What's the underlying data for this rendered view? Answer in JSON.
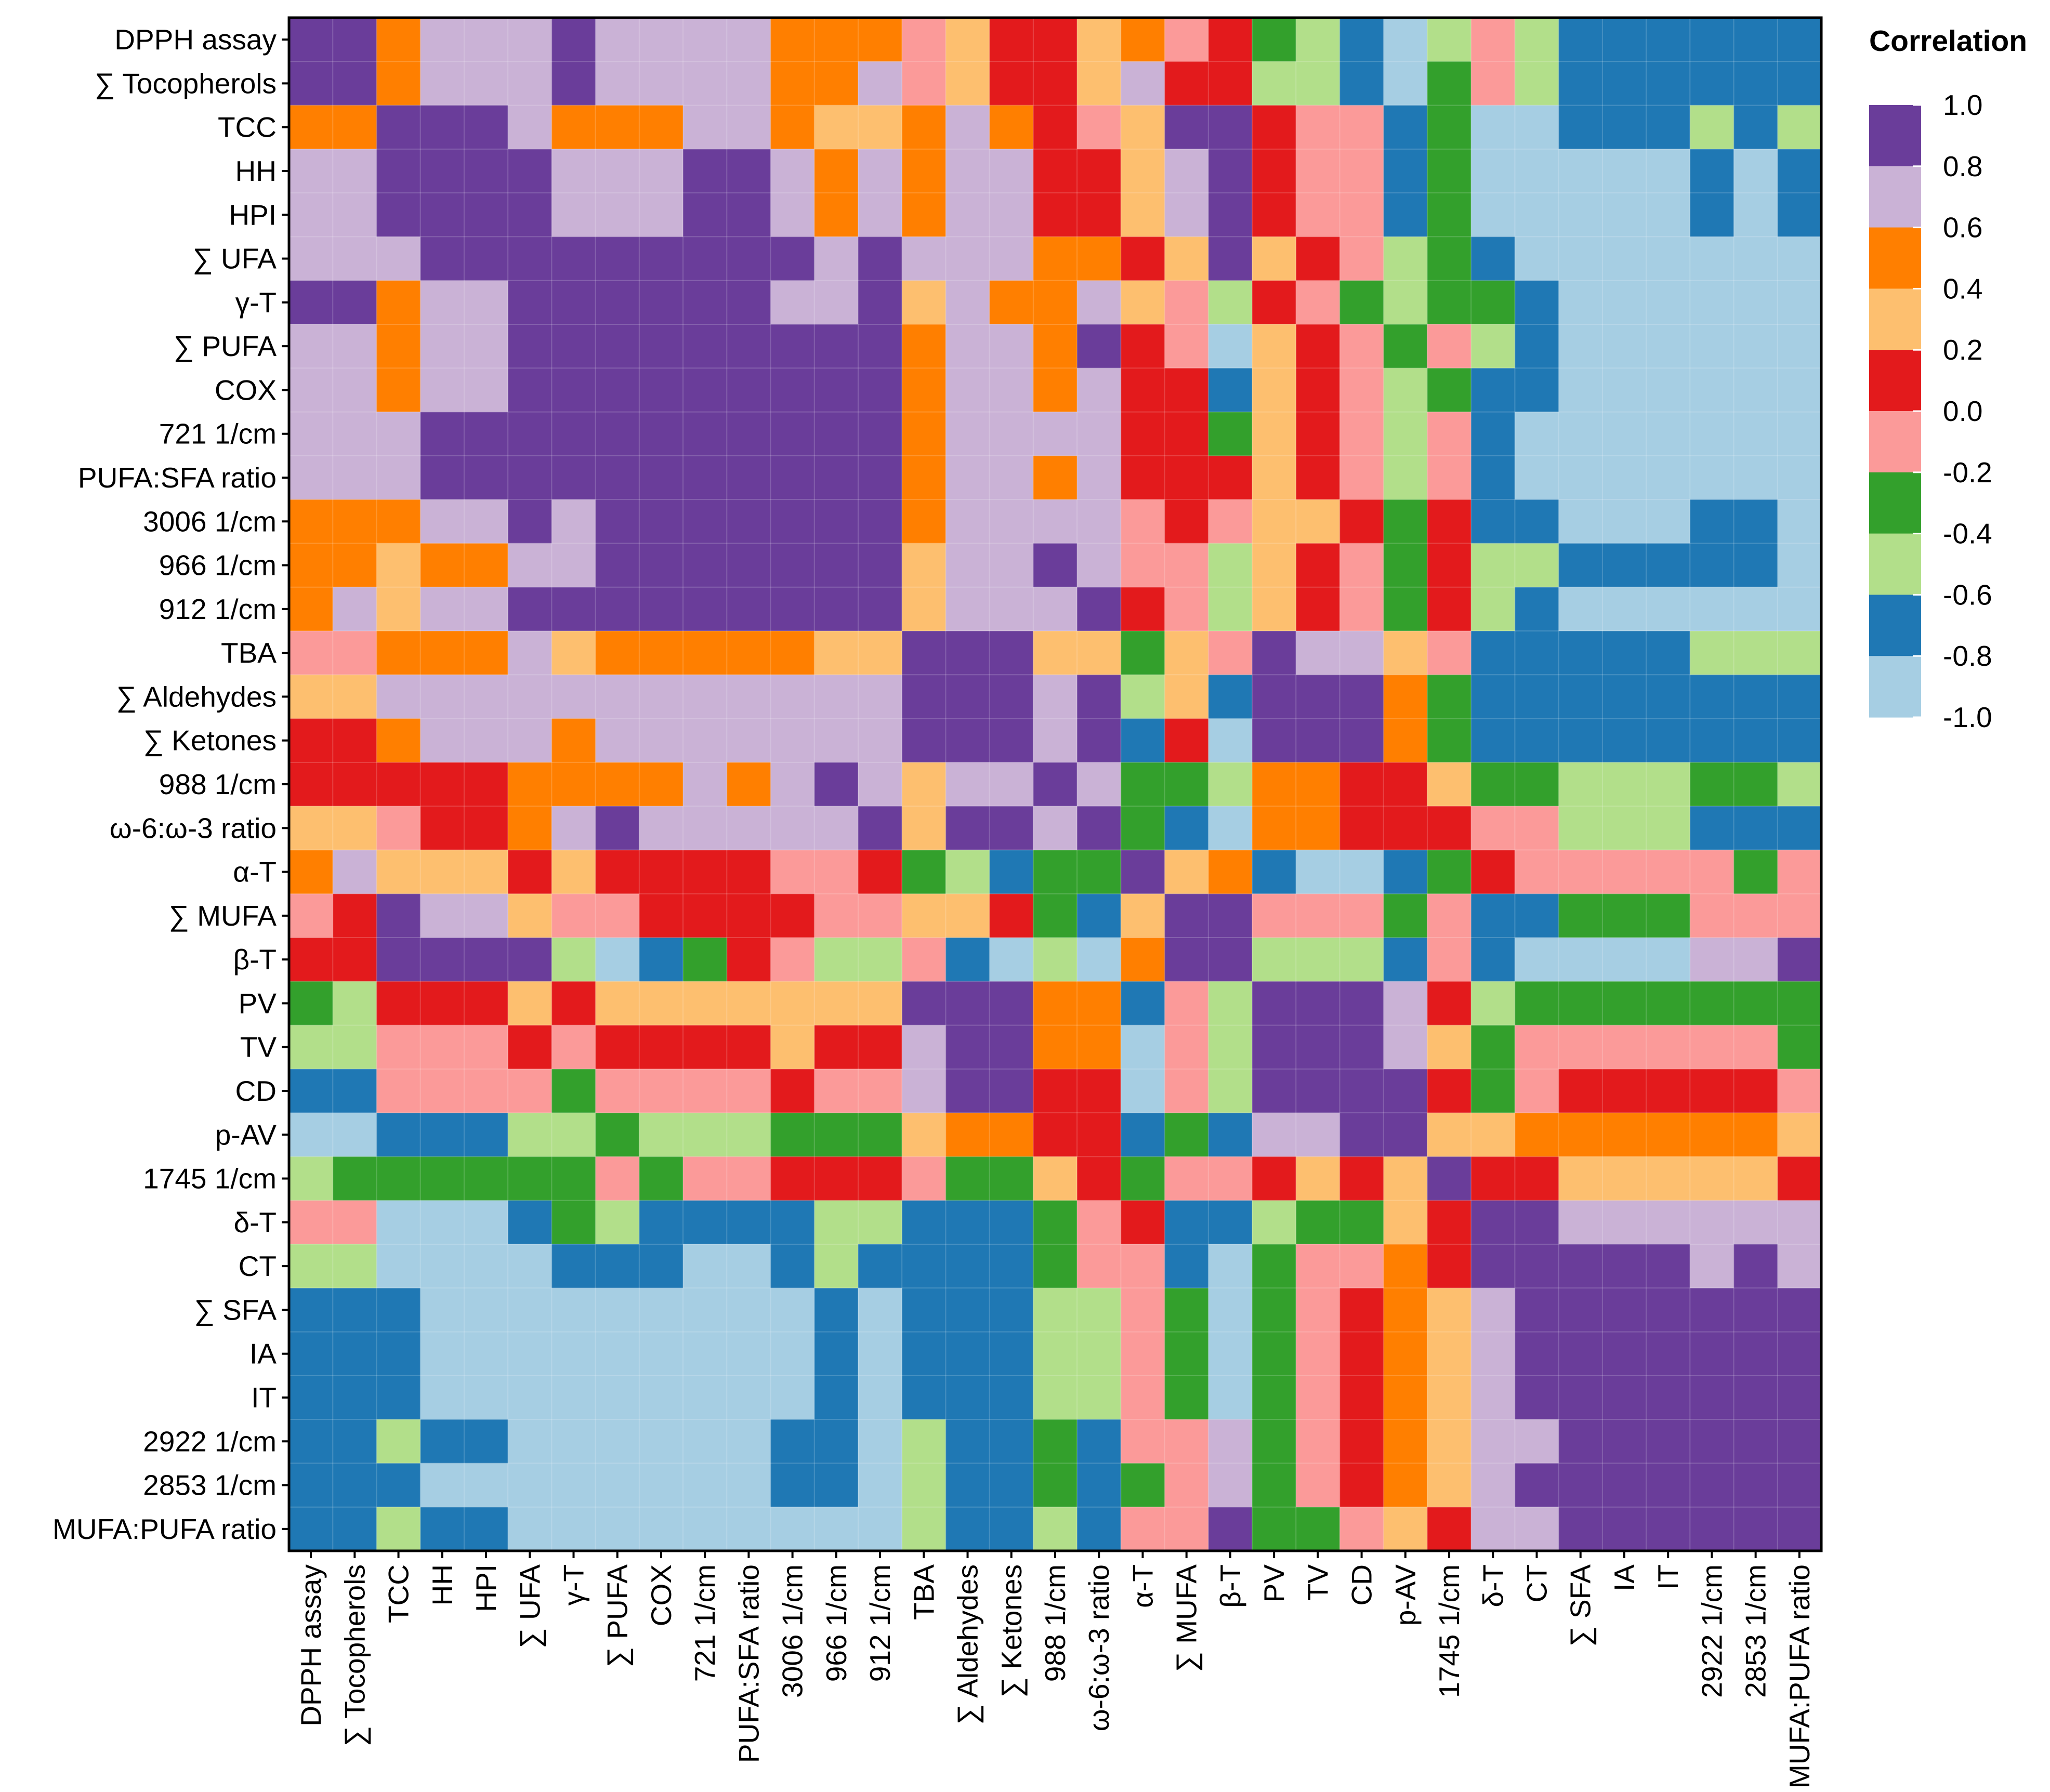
{
  "chart_data": {
    "type": "heatmap",
    "title": "",
    "legend": {
      "title": "Correlation",
      "placement": "top-right",
      "ticks": [
        "1.0",
        "0.8",
        "0.6",
        "0.4",
        "0.2",
        "0.0",
        "-0.2",
        "-0.4",
        "-0.6",
        "-0.8",
        "-1.0"
      ],
      "bins": [
        {
          "range": [
            0.8,
            1.0
          ],
          "color": "#6a3d9a"
        },
        {
          "range": [
            0.6,
            0.8
          ],
          "color": "#cab2d6"
        },
        {
          "range": [
            0.4,
            0.6
          ],
          "color": "#ff7f00"
        },
        {
          "range": [
            0.2,
            0.4
          ],
          "color": "#fdbf6f"
        },
        {
          "range": [
            0.0,
            0.2
          ],
          "color": "#e31a1c"
        },
        {
          "range": [
            -0.2,
            0.0
          ],
          "color": "#fb9a99"
        },
        {
          "range": [
            -0.4,
            -0.2
          ],
          "color": "#33a02c"
        },
        {
          "range": [
            -0.6,
            -0.4
          ],
          "color": "#b2df8a"
        },
        {
          "range": [
            -0.8,
            -0.6
          ],
          "color": "#1f78b4"
        },
        {
          "range": [
            -1.0,
            -0.8
          ],
          "color": "#a6cee3"
        }
      ]
    },
    "variables": [
      "DPPH assay",
      "∑ Tocopherols",
      "TCC",
      "HH",
      "HPI",
      "∑ UFA",
      "γ-T",
      "∑ PUFA",
      "COX",
      "721 1/cm",
      "PUFA:SFA ratio",
      "3006 1/cm",
      "966 1/cm",
      "912 1/cm",
      "TBA",
      "∑ Aldehydes",
      "∑ Ketones",
      "988 1/cm",
      "ω-6:ω-3 ratio",
      "α-T",
      "∑ MUFA",
      "β-T",
      "PV",
      "TV",
      "CD",
      "p-AV",
      "1745 1/cm",
      "δ-T",
      "CT",
      "∑ SFA",
      "IA",
      "IT",
      "2922 1/cm",
      "2853 1/cm",
      "MUFA:PUFA ratio"
    ],
    "matrix": [
      [
        0.9,
        0.9,
        0.5,
        0.7,
        0.7,
        0.7,
        0.9,
        0.7,
        0.7,
        0.7,
        0.7,
        0.5,
        0.5,
        0.5,
        -0.1,
        0.3,
        0.1,
        0.1,
        0.3,
        0.5,
        -0.1,
        0.1,
        -0.3,
        -0.5,
        -0.7,
        -0.9,
        -0.5,
        -0.1,
        -0.5,
        -0.7,
        -0.7,
        -0.7,
        -0.7,
        -0.7,
        -0.7
      ],
      [
        0.9,
        0.9,
        0.5,
        0.7,
        0.7,
        0.7,
        0.9,
        0.7,
        0.7,
        0.7,
        0.7,
        0.5,
        0.5,
        0.7,
        -0.1,
        0.3,
        0.1,
        0.1,
        0.3,
        0.7,
        0.1,
        0.1,
        -0.5,
        -0.5,
        -0.7,
        -0.9,
        -0.3,
        -0.1,
        -0.5,
        -0.7,
        -0.7,
        -0.7,
        -0.7,
        -0.7,
        -0.7
      ],
      [
        0.5,
        0.5,
        0.9,
        0.9,
        0.9,
        0.7,
        0.5,
        0.5,
        0.5,
        0.7,
        0.7,
        0.5,
        0.3,
        0.3,
        0.5,
        0.7,
        0.5,
        0.1,
        -0.1,
        0.3,
        0.9,
        0.9,
        0.1,
        -0.1,
        -0.1,
        -0.7,
        -0.3,
        -0.9,
        -0.9,
        -0.7,
        -0.7,
        -0.7,
        -0.5,
        -0.7,
        -0.5
      ],
      [
        0.7,
        0.7,
        0.9,
        0.9,
        0.9,
        0.9,
        0.7,
        0.7,
        0.7,
        0.9,
        0.9,
        0.7,
        0.5,
        0.7,
        0.5,
        0.7,
        0.7,
        0.1,
        0.1,
        0.3,
        0.7,
        0.9,
        0.1,
        -0.1,
        -0.1,
        -0.7,
        -0.3,
        -0.9,
        -0.9,
        -0.9,
        -0.9,
        -0.9,
        -0.7,
        -0.9,
        -0.7
      ],
      [
        0.7,
        0.7,
        0.9,
        0.9,
        0.9,
        0.9,
        0.7,
        0.7,
        0.7,
        0.9,
        0.9,
        0.7,
        0.5,
        0.7,
        0.5,
        0.7,
        0.7,
        0.1,
        0.1,
        0.3,
        0.7,
        0.9,
        0.1,
        -0.1,
        -0.1,
        -0.7,
        -0.3,
        -0.9,
        -0.9,
        -0.9,
        -0.9,
        -0.9,
        -0.7,
        -0.9,
        -0.7
      ],
      [
        0.7,
        0.7,
        0.7,
        0.9,
        0.9,
        0.9,
        0.9,
        0.9,
        0.9,
        0.9,
        0.9,
        0.9,
        0.7,
        0.9,
        0.7,
        0.7,
        0.7,
        0.5,
        0.5,
        0.1,
        0.3,
        0.9,
        0.3,
        0.1,
        -0.1,
        -0.5,
        -0.3,
        -0.7,
        -0.9,
        -0.9,
        -0.9,
        -0.9,
        -0.9,
        -0.9,
        -0.9
      ],
      [
        0.9,
        0.9,
        0.5,
        0.7,
        0.7,
        0.9,
        0.9,
        0.9,
        0.9,
        0.9,
        0.9,
        0.7,
        0.7,
        0.9,
        0.3,
        0.7,
        0.5,
        0.5,
        0.7,
        0.3,
        -0.1,
        -0.5,
        0.1,
        -0.1,
        -0.3,
        -0.5,
        -0.3,
        -0.3,
        -0.7,
        -0.9,
        -0.9,
        -0.9,
        -0.9,
        -0.9,
        -0.9
      ],
      [
        0.7,
        0.7,
        0.5,
        0.7,
        0.7,
        0.9,
        0.9,
        0.9,
        0.9,
        0.9,
        0.9,
        0.9,
        0.9,
        0.9,
        0.5,
        0.7,
        0.7,
        0.5,
        0.9,
        0.1,
        -0.1,
        -0.9,
        0.3,
        0.1,
        -0.1,
        -0.3,
        -0.1,
        -0.5,
        -0.7,
        -0.9,
        -0.9,
        -0.9,
        -0.9,
        -0.9,
        -0.9
      ],
      [
        0.7,
        0.7,
        0.5,
        0.7,
        0.7,
        0.9,
        0.9,
        0.9,
        0.9,
        0.9,
        0.9,
        0.9,
        0.9,
        0.9,
        0.5,
        0.7,
        0.7,
        0.5,
        0.7,
        0.1,
        0.1,
        -0.7,
        0.3,
        0.1,
        -0.1,
        -0.5,
        -0.3,
        -0.7,
        -0.7,
        -0.9,
        -0.9,
        -0.9,
        -0.9,
        -0.9,
        -0.9
      ],
      [
        0.7,
        0.7,
        0.7,
        0.9,
        0.9,
        0.9,
        0.9,
        0.9,
        0.9,
        0.9,
        0.9,
        0.9,
        0.9,
        0.9,
        0.5,
        0.7,
        0.7,
        0.7,
        0.7,
        0.1,
        0.1,
        -0.3,
        0.3,
        0.1,
        -0.1,
        -0.5,
        -0.1,
        -0.7,
        -0.9,
        -0.9,
        -0.9,
        -0.9,
        -0.9,
        -0.9,
        -0.9
      ],
      [
        0.7,
        0.7,
        0.7,
        0.9,
        0.9,
        0.9,
        0.9,
        0.9,
        0.9,
        0.9,
        0.9,
        0.9,
        0.9,
        0.9,
        0.5,
        0.7,
        0.7,
        0.5,
        0.7,
        0.1,
        0.1,
        0.1,
        0.3,
        0.1,
        -0.1,
        -0.5,
        -0.1,
        -0.7,
        -0.9,
        -0.9,
        -0.9,
        -0.9,
        -0.9,
        -0.9,
        -0.9
      ],
      [
        0.5,
        0.5,
        0.5,
        0.7,
        0.7,
        0.9,
        0.7,
        0.9,
        0.9,
        0.9,
        0.9,
        0.9,
        0.9,
        0.9,
        0.5,
        0.7,
        0.7,
        0.7,
        0.7,
        -0.1,
        0.1,
        -0.1,
        0.3,
        0.3,
        0.1,
        -0.3,
        0.1,
        -0.7,
        -0.7,
        -0.9,
        -0.9,
        -0.9,
        -0.7,
        -0.7,
        -0.9
      ],
      [
        0.5,
        0.5,
        0.3,
        0.5,
        0.5,
        0.7,
        0.7,
        0.9,
        0.9,
        0.9,
        0.9,
        0.9,
        0.9,
        0.9,
        0.3,
        0.7,
        0.7,
        0.9,
        0.7,
        -0.1,
        -0.1,
        -0.5,
        0.3,
        0.1,
        -0.1,
        -0.3,
        0.1,
        -0.5,
        -0.5,
        -0.7,
        -0.7,
        -0.7,
        -0.7,
        -0.7,
        -0.9
      ],
      [
        0.5,
        0.7,
        0.3,
        0.7,
        0.7,
        0.9,
        0.9,
        0.9,
        0.9,
        0.9,
        0.9,
        0.9,
        0.9,
        0.9,
        0.3,
        0.7,
        0.7,
        0.7,
        0.9,
        0.1,
        -0.1,
        -0.5,
        0.3,
        0.1,
        -0.1,
        -0.3,
        0.1,
        -0.5,
        -0.7,
        -0.9,
        -0.9,
        -0.9,
        -0.9,
        -0.9,
        -0.9
      ],
      [
        -0.1,
        -0.1,
        0.5,
        0.5,
        0.5,
        0.7,
        0.3,
        0.5,
        0.5,
        0.5,
        0.5,
        0.5,
        0.3,
        0.3,
        0.9,
        0.9,
        0.9,
        0.3,
        0.3,
        -0.3,
        0.3,
        -0.1,
        0.9,
        0.7,
        0.7,
        0.3,
        -0.1,
        -0.7,
        -0.7,
        -0.7,
        -0.7,
        -0.7,
        -0.5,
        -0.5,
        -0.5
      ],
      [
        0.3,
        0.3,
        0.7,
        0.7,
        0.7,
        0.7,
        0.7,
        0.7,
        0.7,
        0.7,
        0.7,
        0.7,
        0.7,
        0.7,
        0.9,
        0.9,
        0.9,
        0.7,
        0.9,
        -0.5,
        0.3,
        -0.7,
        0.9,
        0.9,
        0.9,
        0.5,
        -0.3,
        -0.7,
        -0.7,
        -0.7,
        -0.7,
        -0.7,
        -0.7,
        -0.7,
        -0.7
      ],
      [
        0.1,
        0.1,
        0.5,
        0.7,
        0.7,
        0.7,
        0.5,
        0.7,
        0.7,
        0.7,
        0.7,
        0.7,
        0.7,
        0.7,
        0.9,
        0.9,
        0.9,
        0.7,
        0.9,
        -0.7,
        0.1,
        -0.9,
        0.9,
        0.9,
        0.9,
        0.5,
        -0.3,
        -0.7,
        -0.7,
        -0.7,
        -0.7,
        -0.7,
        -0.7,
        -0.7,
        -0.7
      ],
      [
        0.1,
        0.1,
        0.1,
        0.1,
        0.1,
        0.5,
        0.5,
        0.5,
        0.5,
        0.7,
        0.5,
        0.7,
        0.9,
        0.7,
        0.3,
        0.7,
        0.7,
        0.9,
        0.7,
        -0.3,
        -0.3,
        -0.5,
        0.5,
        0.5,
        0.1,
        0.1,
        0.3,
        -0.3,
        -0.3,
        -0.5,
        -0.5,
        -0.5,
        -0.3,
        -0.3,
        -0.5
      ],
      [
        0.3,
        0.3,
        -0.1,
        0.1,
        0.1,
        0.5,
        0.7,
        0.9,
        0.7,
        0.7,
        0.7,
        0.7,
        0.7,
        0.9,
        0.3,
        0.9,
        0.9,
        0.7,
        0.9,
        -0.3,
        -0.7,
        -0.9,
        0.5,
        0.5,
        0.1,
        0.1,
        0.1,
        -0.1,
        -0.1,
        -0.5,
        -0.5,
        -0.5,
        -0.7,
        -0.7,
        -0.7
      ],
      [
        0.5,
        0.7,
        0.3,
        0.3,
        0.3,
        0.1,
        0.3,
        0.1,
        0.1,
        0.1,
        0.1,
        -0.1,
        -0.1,
        0.1,
        -0.3,
        -0.5,
        -0.7,
        -0.3,
        -0.3,
        0.9,
        0.3,
        0.5,
        -0.7,
        -0.9,
        -0.9,
        -0.7,
        -0.3,
        0.1,
        -0.1,
        -0.1,
        -0.1,
        -0.1,
        -0.1,
        -0.3,
        -0.1
      ],
      [
        -0.1,
        0.1,
        0.9,
        0.7,
        0.7,
        0.3,
        -0.1,
        -0.1,
        0.1,
        0.1,
        0.1,
        0.1,
        -0.1,
        -0.1,
        0.3,
        0.3,
        0.1,
        -0.3,
        -0.7,
        0.3,
        0.9,
        0.9,
        -0.1,
        -0.1,
        -0.1,
        -0.3,
        -0.1,
        -0.7,
        -0.7,
        -0.3,
        -0.3,
        -0.3,
        -0.1,
        -0.1,
        -0.1
      ],
      [
        0.1,
        0.1,
        0.9,
        0.9,
        0.9,
        0.9,
        -0.5,
        -0.9,
        -0.7,
        -0.3,
        0.1,
        -0.1,
        -0.5,
        -0.5,
        -0.1,
        -0.7,
        -0.9,
        -0.5,
        -0.9,
        0.5,
        0.9,
        0.9,
        -0.5,
        -0.5,
        -0.5,
        -0.7,
        -0.1,
        -0.7,
        -0.9,
        -0.9,
        -0.9,
        -0.9,
        0.7,
        0.7,
        0.9
      ],
      [
        -0.3,
        -0.5,
        0.1,
        0.1,
        0.1,
        0.3,
        0.1,
        0.3,
        0.3,
        0.3,
        0.3,
        0.3,
        0.3,
        0.3,
        0.9,
        0.9,
        0.9,
        0.5,
        0.5,
        -0.7,
        -0.1,
        -0.5,
        0.9,
        0.9,
        0.9,
        0.7,
        0.1,
        -0.5,
        -0.3,
        -0.3,
        -0.3,
        -0.3,
        -0.3,
        -0.3,
        -0.3
      ],
      [
        -0.5,
        -0.5,
        -0.1,
        -0.1,
        -0.1,
        0.1,
        -0.1,
        0.1,
        0.1,
        0.1,
        0.1,
        0.3,
        0.1,
        0.1,
        0.7,
        0.9,
        0.9,
        0.5,
        0.5,
        -0.9,
        -0.1,
        -0.5,
        0.9,
        0.9,
        0.9,
        0.7,
        0.3,
        -0.3,
        -0.1,
        -0.1,
        -0.1,
        -0.1,
        -0.1,
        -0.1,
        -0.3
      ],
      [
        -0.7,
        -0.7,
        -0.1,
        -0.1,
        -0.1,
        -0.1,
        -0.3,
        -0.1,
        -0.1,
        -0.1,
        -0.1,
        0.1,
        -0.1,
        -0.1,
        0.7,
        0.9,
        0.9,
        0.1,
        0.1,
        -0.9,
        -0.1,
        -0.5,
        0.9,
        0.9,
        0.9,
        0.9,
        0.1,
        -0.3,
        -0.1,
        0.1,
        0.1,
        0.1,
        0.1,
        0.1,
        -0.1
      ],
      [
        -0.9,
        -0.9,
        -0.7,
        -0.7,
        -0.7,
        -0.5,
        -0.5,
        -0.3,
        -0.5,
        -0.5,
        -0.5,
        -0.3,
        -0.3,
        -0.3,
        0.3,
        0.5,
        0.5,
        0.1,
        0.1,
        -0.7,
        -0.3,
        -0.7,
        0.7,
        0.7,
        0.9,
        0.9,
        0.3,
        0.3,
        0.5,
        0.5,
        0.5,
        0.5,
        0.5,
        0.5,
        0.3
      ],
      [
        -0.5,
        -0.3,
        -0.3,
        -0.3,
        -0.3,
        -0.3,
        -0.3,
        -0.1,
        -0.3,
        -0.1,
        -0.1,
        0.1,
        0.1,
        0.1,
        -0.1,
        -0.3,
        -0.3,
        0.3,
        0.1,
        -0.3,
        -0.1,
        -0.1,
        0.1,
        0.3,
        0.1,
        0.3,
        0.9,
        0.1,
        0.1,
        0.3,
        0.3,
        0.3,
        0.3,
        0.3,
        0.1
      ],
      [
        -0.1,
        -0.1,
        -0.9,
        -0.9,
        -0.9,
        -0.7,
        -0.3,
        -0.5,
        -0.7,
        -0.7,
        -0.7,
        -0.7,
        -0.5,
        -0.5,
        -0.7,
        -0.7,
        -0.7,
        -0.3,
        -0.1,
        0.1,
        -0.7,
        -0.7,
        -0.5,
        -0.3,
        -0.3,
        0.3,
        0.1,
        0.9,
        0.9,
        0.7,
        0.7,
        0.7,
        0.7,
        0.7,
        0.7
      ],
      [
        -0.5,
        -0.5,
        -0.9,
        -0.9,
        -0.9,
        -0.9,
        -0.7,
        -0.7,
        -0.7,
        -0.9,
        -0.9,
        -0.7,
        -0.5,
        -0.7,
        -0.7,
        -0.7,
        -0.7,
        -0.3,
        -0.1,
        -0.1,
        -0.7,
        -0.9,
        -0.3,
        -0.1,
        -0.1,
        0.5,
        0.1,
        0.9,
        0.9,
        0.9,
        0.9,
        0.9,
        0.7,
        0.9,
        0.7
      ],
      [
        -0.7,
        -0.7,
        -0.7,
        -0.9,
        -0.9,
        -0.9,
        -0.9,
        -0.9,
        -0.9,
        -0.9,
        -0.9,
        -0.9,
        -0.7,
        -0.9,
        -0.7,
        -0.7,
        -0.7,
        -0.5,
        -0.5,
        -0.1,
        -0.3,
        -0.9,
        -0.3,
        -0.1,
        0.1,
        0.5,
        0.3,
        0.7,
        0.9,
        0.9,
        0.9,
        0.9,
        0.9,
        0.9,
        0.9
      ],
      [
        -0.7,
        -0.7,
        -0.7,
        -0.9,
        -0.9,
        -0.9,
        -0.9,
        -0.9,
        -0.9,
        -0.9,
        -0.9,
        -0.9,
        -0.7,
        -0.9,
        -0.7,
        -0.7,
        -0.7,
        -0.5,
        -0.5,
        -0.1,
        -0.3,
        -0.9,
        -0.3,
        -0.1,
        0.1,
        0.5,
        0.3,
        0.7,
        0.9,
        0.9,
        0.9,
        0.9,
        0.9,
        0.9,
        0.9
      ],
      [
        -0.7,
        -0.7,
        -0.7,
        -0.9,
        -0.9,
        -0.9,
        -0.9,
        -0.9,
        -0.9,
        -0.9,
        -0.9,
        -0.9,
        -0.7,
        -0.9,
        -0.7,
        -0.7,
        -0.7,
        -0.5,
        -0.5,
        -0.1,
        -0.3,
        -0.9,
        -0.3,
        -0.1,
        0.1,
        0.5,
        0.3,
        0.7,
        0.9,
        0.9,
        0.9,
        0.9,
        0.9,
        0.9,
        0.9
      ],
      [
        -0.7,
        -0.7,
        -0.5,
        -0.7,
        -0.7,
        -0.9,
        -0.9,
        -0.9,
        -0.9,
        -0.9,
        -0.9,
        -0.7,
        -0.7,
        -0.9,
        -0.5,
        -0.7,
        -0.7,
        -0.3,
        -0.7,
        -0.1,
        -0.1,
        0.7,
        -0.3,
        -0.1,
        0.1,
        0.5,
        0.3,
        0.7,
        0.7,
        0.9,
        0.9,
        0.9,
        0.9,
        0.9,
        0.9
      ],
      [
        -0.7,
        -0.7,
        -0.7,
        -0.9,
        -0.9,
        -0.9,
        -0.9,
        -0.9,
        -0.9,
        -0.9,
        -0.9,
        -0.7,
        -0.7,
        -0.9,
        -0.5,
        -0.7,
        -0.7,
        -0.3,
        -0.7,
        -0.3,
        -0.1,
        0.7,
        -0.3,
        -0.1,
        0.1,
        0.5,
        0.3,
        0.7,
        0.9,
        0.9,
        0.9,
        0.9,
        0.9,
        0.9,
        0.9
      ],
      [
        -0.7,
        -0.7,
        -0.5,
        -0.7,
        -0.7,
        -0.9,
        -0.9,
        -0.9,
        -0.9,
        -0.9,
        -0.9,
        -0.9,
        -0.9,
        -0.9,
        -0.5,
        -0.7,
        -0.7,
        -0.5,
        -0.7,
        -0.1,
        -0.1,
        0.9,
        -0.3,
        -0.3,
        -0.1,
        0.3,
        0.1,
        0.7,
        0.7,
        0.9,
        0.9,
        0.9,
        0.9,
        0.9,
        0.9
      ]
    ]
  }
}
